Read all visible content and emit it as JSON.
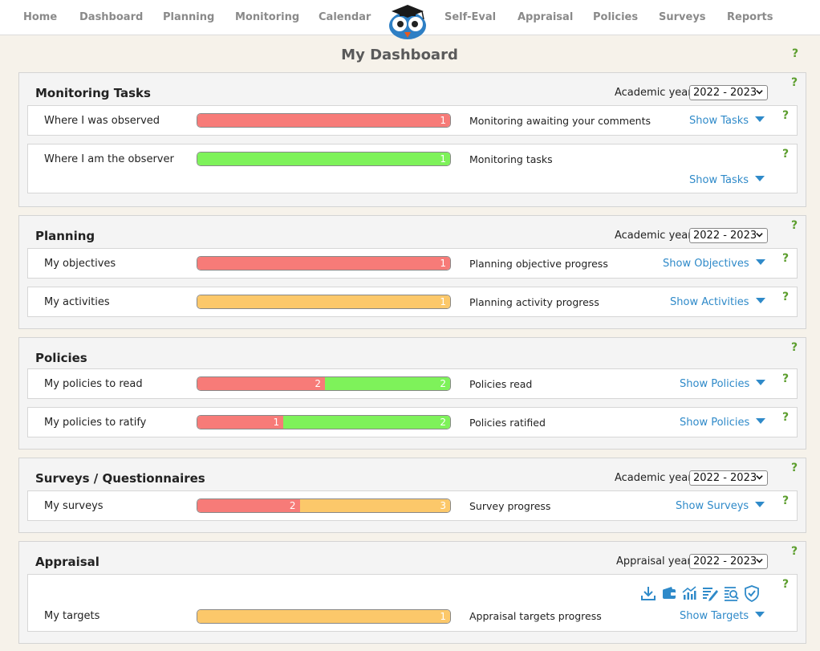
{
  "nav": {
    "items": [
      "Home",
      "Dashboard",
      "Planning",
      "Monitoring",
      "Calendar",
      "Self-Eval",
      "Appraisal",
      "Policies",
      "Surveys",
      "Reports"
    ]
  },
  "page": {
    "title": "My Dashboard",
    "help": "?"
  },
  "monitoring": {
    "title": "Monitoring Tasks",
    "year_label": "Academic year",
    "year_value": "2022 - 2023",
    "rows": [
      {
        "label": "Where I was observed",
        "segments": [
          {
            "color": "red",
            "value": "1"
          }
        ],
        "progress_label": "Monitoring awaiting your comments",
        "link": "Show Tasks"
      },
      {
        "label": "Where I am the observer",
        "segments": [
          {
            "color": "green",
            "value": "1"
          }
        ],
        "progress_label": "Monitoring tasks",
        "link": "Show Tasks"
      }
    ]
  },
  "planning": {
    "title": "Planning",
    "year_label": "Academic year",
    "year_value": "2022 - 2023",
    "rows": [
      {
        "label": "My objectives",
        "segments": [
          {
            "color": "red",
            "value": "1"
          }
        ],
        "progress_label": "Planning objective progress",
        "link": "Show Objectives"
      },
      {
        "label": "My activities",
        "segments": [
          {
            "color": "amber",
            "value": "1"
          }
        ],
        "progress_label": "Planning activity progress",
        "link": "Show Activities"
      }
    ]
  },
  "policies": {
    "title": "Policies",
    "rows": [
      {
        "label": "My policies to read",
        "segments": [
          {
            "color": "red",
            "value": "2"
          },
          {
            "color": "green",
            "value": "2"
          }
        ],
        "progress_label": "Policies read",
        "link": "Show Policies"
      },
      {
        "label": "My policies to ratify",
        "segments": [
          {
            "color": "red",
            "value": "1"
          },
          {
            "color": "green",
            "value": "2"
          }
        ],
        "progress_label": "Policies ratified",
        "link": "Show Policies"
      }
    ]
  },
  "surveys": {
    "title": "Surveys / Questionnaires",
    "year_label": "Academic year",
    "year_value": "2022 - 2023",
    "rows": [
      {
        "label": "My surveys",
        "segments": [
          {
            "color": "red",
            "value": "2"
          },
          {
            "color": "amber",
            "value": "3"
          }
        ],
        "progress_label": "Survey progress",
        "link": "Show Surveys"
      }
    ]
  },
  "appraisal": {
    "title": "Appraisal",
    "year_label": "Appraisal year",
    "year_value": "2022 - 2023",
    "tools": [
      "download-icon",
      "wallet-icon",
      "chart-icon",
      "edit-list-icon",
      "search-doc-icon",
      "shield-check-icon"
    ],
    "rows": [
      {
        "label": "My targets",
        "segments": [
          {
            "color": "amber",
            "value": "1"
          }
        ],
        "progress_label": "Appraisal targets progress",
        "link": "Show Targets"
      }
    ]
  },
  "colors": {
    "red": "#f77b78",
    "green": "#7ef25a",
    "amber": "#fcc86a",
    "link": "#2f8ac9",
    "help": "#5c9e2e"
  }
}
